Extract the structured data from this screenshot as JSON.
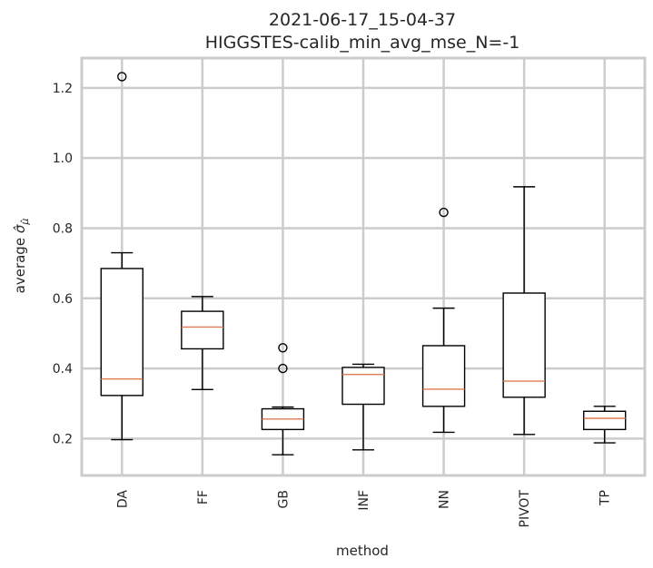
{
  "chart_data": {
    "type": "box",
    "title_line1": "2021-06-17_15-04-37",
    "title_line2": "HIGGSTES-calib_min_avg_mse_N=-1",
    "xlabel": "method",
    "ylabel_prefix": "average ",
    "ylabel_symbol": "σ̂",
    "ylabel_subscript": "μ̂",
    "ylim": [
      0.095,
      1.285
    ],
    "yticks": [
      0.2,
      0.4,
      0.6,
      0.8,
      1.0,
      1.2
    ],
    "ytick_labels": [
      "0.2",
      "0.4",
      "0.6",
      "0.8",
      "1.0",
      "1.2"
    ],
    "grid": true,
    "categories": [
      "DA",
      "FF",
      "GB",
      "INF",
      "NN",
      "PIVOT",
      "TP"
    ],
    "boxes": [
      {
        "label": "DA",
        "whislo": 0.197,
        "q1": 0.323,
        "med": 0.37,
        "q3": 0.685,
        "whishi": 0.73,
        "fliers": [
          1.232
        ]
      },
      {
        "label": "FF",
        "whislo": 0.34,
        "q1": 0.456,
        "med": 0.518,
        "q3": 0.563,
        "whishi": 0.605,
        "fliers": []
      },
      {
        "label": "GB",
        "whislo": 0.154,
        "q1": 0.226,
        "med": 0.256,
        "q3": 0.285,
        "whishi": 0.29,
        "fliers": [
          0.4,
          0.459
        ]
      },
      {
        "label": "INF",
        "whislo": 0.168,
        "q1": 0.298,
        "med": 0.383,
        "q3": 0.403,
        "whishi": 0.412,
        "fliers": []
      },
      {
        "label": "NN",
        "whislo": 0.218,
        "q1": 0.292,
        "med": 0.341,
        "q3": 0.465,
        "whishi": 0.572,
        "fliers": [
          0.845
        ]
      },
      {
        "label": "PIVOT",
        "whislo": 0.212,
        "q1": 0.318,
        "med": 0.364,
        "q3": 0.615,
        "whishi": 0.918,
        "fliers": []
      },
      {
        "label": "TP",
        "whislo": 0.188,
        "q1": 0.226,
        "med": 0.258,
        "q3": 0.278,
        "whishi": 0.292,
        "fliers": []
      }
    ],
    "colors": {
      "box": "#000000",
      "median": "#e07b54",
      "grid": "#cccccc",
      "frame": "#cccccc"
    }
  }
}
